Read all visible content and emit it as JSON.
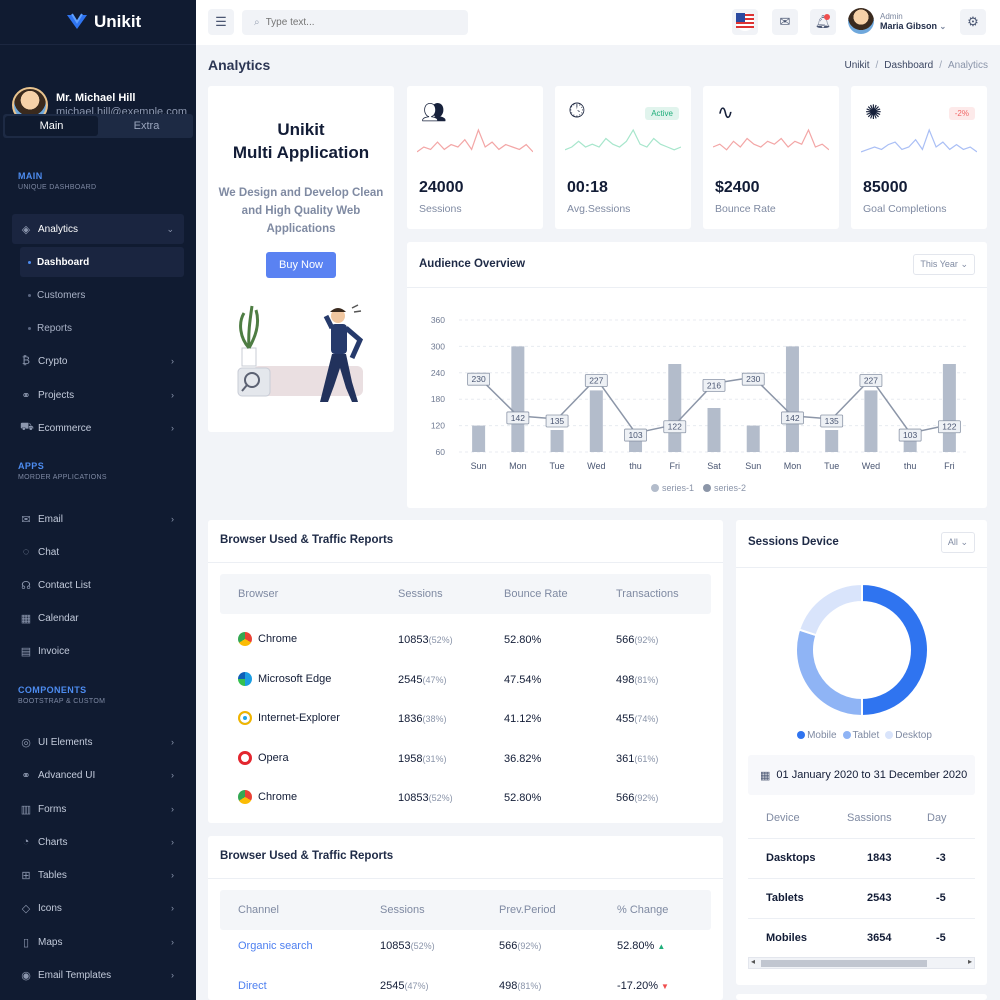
{
  "brand": {
    "name": "Unikit"
  },
  "profile": {
    "name": "Mr. Michael Hill",
    "email": "michael.hill@exemple.com"
  },
  "sidebar_tabs": [
    "Main",
    "Extra"
  ],
  "sections": {
    "main": {
      "title": "MAIN",
      "subtitle": "UNIQUE DASHBOARD"
    },
    "apps": {
      "title": "APPS",
      "subtitle": "MORDER APPLICATIONS"
    },
    "components": {
      "title": "COMPONENTS",
      "subtitle": "BOOTSTRAP & CUSTOM"
    }
  },
  "nav": {
    "analytics": "Analytics",
    "dashboard": "Dashboard",
    "customers": "Customers",
    "reports": "Reports",
    "crypto": "Crypto",
    "projects": "Projects",
    "ecommerce": "Ecommerce",
    "email": "Email",
    "chat": "Chat",
    "contact_list": "Contact List",
    "calendar": "Calendar",
    "invoice": "Invoice",
    "ui_elements": "UI Elements",
    "advanced_ui": "Advanced UI",
    "forms": "Forms",
    "charts": "Charts",
    "tables": "Tables",
    "icons": "Icons",
    "maps": "Maps",
    "email_templates": "Email Templates"
  },
  "header": {
    "search_placeholder": "Type text...",
    "user_role": "Admin",
    "user_name": "Maria Gibson"
  },
  "page": {
    "title": "Analytics",
    "breadcrumb": [
      "Unikit",
      "Dashboard",
      "Analytics"
    ]
  },
  "promo": {
    "title_line1": "Unikit",
    "title_line2": "Multi Application",
    "text": "We Design and Develop Clean and High Quality Web Applications",
    "button": "Buy Now"
  },
  "stats": [
    {
      "value": "24000",
      "label": "Sessions",
      "icon": "users-icon",
      "badge": "",
      "spark_color": "#f3a6a6",
      "spark": [
        5,
        7,
        6,
        9,
        6,
        8,
        7,
        10,
        6,
        14,
        7,
        9,
        6,
        8,
        7,
        6,
        8,
        5
      ]
    },
    {
      "value": "00:18",
      "label": "Avg.Sessions",
      "icon": "clock-icon",
      "badge": "Active",
      "badge_color": "#1fae7a",
      "spark_color": "#a7e6cc",
      "spark": [
        5,
        6,
        8,
        6,
        7,
        6,
        9,
        7,
        6,
        8,
        12,
        7,
        6,
        9,
        7,
        6,
        5,
        6
      ]
    },
    {
      "value": "$2400",
      "label": "Bounce Rate",
      "icon": "pulse-icon",
      "badge": "",
      "spark_color": "#f3a6a6",
      "spark": [
        6,
        7,
        5,
        8,
        6,
        9,
        7,
        6,
        8,
        7,
        9,
        6,
        8,
        7,
        12,
        6,
        7,
        5
      ]
    },
    {
      "value": "85000",
      "label": "Goal Completions",
      "icon": "party-icon",
      "badge": "-2%",
      "badge_color": "#f06565",
      "spark_color": "#aabff5",
      "spark": [
        5,
        6,
        7,
        6,
        8,
        9,
        6,
        7,
        10,
        6,
        14,
        7,
        9,
        6,
        8,
        6,
        7,
        5
      ]
    }
  ],
  "audience": {
    "title": "Audience Overview",
    "filter": "This Year"
  },
  "chart_data": {
    "type": "bar",
    "categories": [
      "Sun",
      "Mon",
      "Tue",
      "Wed",
      "thu",
      "Fri",
      "Sat",
      "Sun",
      "Mon",
      "Tue",
      "Wed",
      "thu",
      "Fri"
    ],
    "series": [
      {
        "name": "series-1",
        "type": "bar",
        "values": [
          120,
          300,
          110,
          200,
          95,
          260,
          160,
          120,
          300,
          110,
          200,
          95,
          260
        ],
        "color": "#b3bccb"
      },
      {
        "name": "series-2",
        "type": "line",
        "values": [
          230,
          142,
          135,
          227,
          103,
          122,
          216,
          230,
          142,
          135,
          227,
          103,
          122
        ],
        "color": "#8c96a8"
      }
    ],
    "yticks": [
      60,
      120,
      180,
      240,
      300,
      360
    ],
    "ylim": [
      60,
      360
    ],
    "legend": "bottom",
    "grid": true
  },
  "browser_table": {
    "title": "Browser Used & Traffic Reports",
    "headers": [
      "Browser",
      "Sessions",
      "Bounce Rate",
      "Transactions"
    ],
    "rows": [
      {
        "browser": "Chrome",
        "icon": "chrome-icon",
        "sessions": "10853",
        "sessions_pct": "(52%)",
        "bounce": "52.80%",
        "trans": "566",
        "trans_pct": "(92%)"
      },
      {
        "browser": "Microsoft Edge",
        "icon": "edge-icon",
        "sessions": "2545",
        "sessions_pct": "(47%)",
        "bounce": "47.54%",
        "trans": "498",
        "trans_pct": "(81%)"
      },
      {
        "browser": "Internet-Explorer",
        "icon": "ie-icon",
        "sessions": "1836",
        "sessions_pct": "(38%)",
        "bounce": "41.12%",
        "trans": "455",
        "trans_pct": "(74%)"
      },
      {
        "browser": "Opera",
        "icon": "opera-icon",
        "sessions": "1958",
        "sessions_pct": "(31%)",
        "bounce": "36.82%",
        "trans": "361",
        "trans_pct": "(61%)"
      },
      {
        "browser": "Chrome",
        "icon": "chrome-icon",
        "sessions": "10853",
        "sessions_pct": "(52%)",
        "bounce": "52.80%",
        "trans": "566",
        "trans_pct": "(92%)"
      }
    ]
  },
  "traffic_table": {
    "title": "Browser Used & Traffic Reports",
    "headers": [
      "Channel",
      "Sessions",
      "Prev.Period",
      "% Change"
    ],
    "rows": [
      {
        "channel": "Organic search",
        "sessions": "10853",
        "sessions_pct": "(52%)",
        "prev": "566",
        "prev_pct": "(92%)",
        "change": "52.80%",
        "dir": "up"
      },
      {
        "channel": "Direct",
        "sessions": "2545",
        "sessions_pct": "(47%)",
        "prev": "498",
        "prev_pct": "(81%)",
        "change": "-17.20%",
        "dir": "down"
      }
    ]
  },
  "sessions_device": {
    "title": "Sessions Device",
    "filter": "All",
    "donut": [
      {
        "name": "Mobile",
        "value": 50,
        "color": "#2f74f0"
      },
      {
        "name": "Tablet",
        "value": 30,
        "color": "#8fb4f5"
      },
      {
        "name": "Desktop",
        "value": 20,
        "color": "#d9e4fb"
      }
    ],
    "date_range": "01 January 2020 to 31 December 2020",
    "headers": [
      "Device",
      "Sassions",
      "Day"
    ],
    "rows": [
      {
        "device": "Dasktops",
        "sessions": "1843",
        "day": "-3"
      },
      {
        "device": "Tablets",
        "sessions": "2543",
        "day": "-5"
      },
      {
        "device": "Mobiles",
        "sessions": "3654",
        "day": "-5"
      }
    ]
  }
}
